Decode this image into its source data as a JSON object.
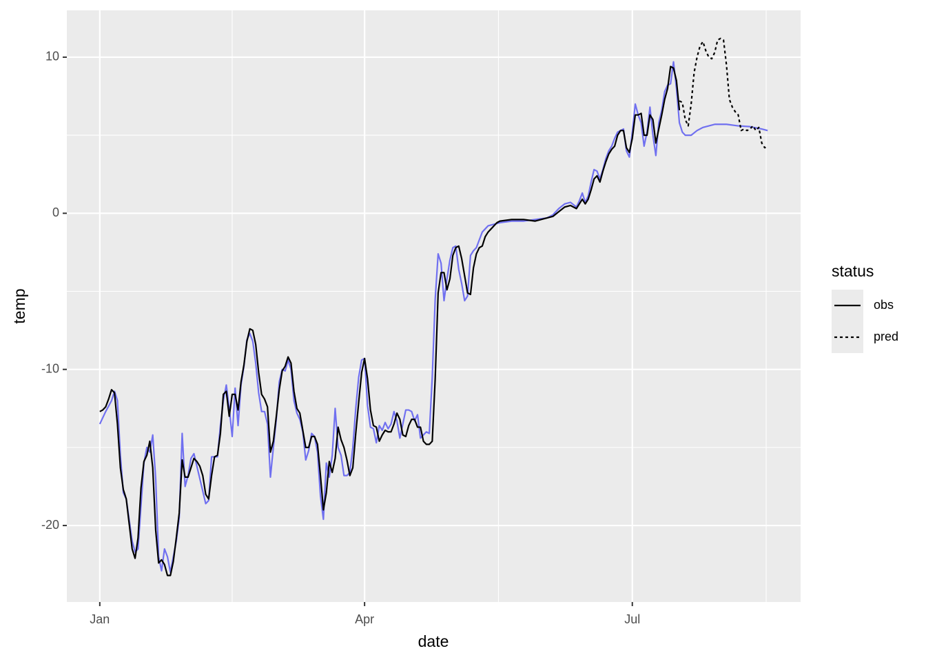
{
  "chart_data": {
    "type": "line",
    "x_label": "date",
    "y_label": "temp",
    "legend_title": "status",
    "xlim": [
      -11.2,
      238.2
    ],
    "ylim": [
      -24.9,
      13.0
    ],
    "xticks": [
      {
        "value": 0,
        "label": "Jan"
      },
      {
        "value": 90,
        "label": "Apr"
      },
      {
        "value": 181,
        "label": "Jul"
      }
    ],
    "yticks": [
      -20,
      -10,
      0,
      10
    ],
    "grid": true,
    "series": [
      {
        "color": "#7070f0",
        "dash": "solid",
        "x": [
          0,
          2,
          4,
          5,
          6,
          7,
          8,
          9,
          11,
          12,
          13,
          15,
          16,
          17,
          18,
          19,
          20,
          21,
          22,
          23,
          24,
          26,
          27,
          28,
          29,
          30,
          31,
          32,
          34,
          36,
          37,
          38,
          40,
          41,
          42,
          43,
          44,
          45,
          46,
          47,
          48,
          49,
          50,
          51,
          52,
          53,
          54,
          55,
          56,
          57,
          58,
          59,
          60,
          61,
          62,
          63,
          64,
          65,
          66,
          67,
          68,
          69,
          70,
          71,
          72,
          73,
          74,
          75,
          76,
          77,
          78,
          79,
          80,
          81,
          82,
          83,
          84,
          85,
          86,
          87,
          88,
          89,
          90,
          91,
          92,
          93,
          94,
          95,
          96,
          97,
          98,
          99,
          100,
          101,
          102,
          103,
          104,
          105,
          106,
          107,
          108,
          109,
          110,
          111,
          112,
          113,
          114,
          115,
          116,
          117,
          118,
          119,
          120,
          121,
          122,
          123,
          124,
          125,
          126,
          127,
          128,
          129,
          130,
          131,
          132,
          134,
          136,
          140,
          144,
          148,
          152,
          154,
          156,
          158,
          160,
          162,
          163,
          164,
          165,
          166,
          167,
          168,
          169,
          170,
          171,
          172,
          173,
          174,
          175,
          176,
          177,
          178,
          179,
          180,
          181,
          182,
          183,
          184,
          185,
          186,
          187,
          188,
          189,
          190,
          191,
          192,
          193,
          194,
          195,
          196,
          197,
          198,
          199,
          201,
          203,
          205,
          207,
          209,
          213,
          217,
          221,
          225,
          227
        ],
        "values": [
          -13.5,
          -12.7,
          -12.0,
          -11.4,
          -12.0,
          -15.5,
          -17.9,
          -18.3,
          -21.0,
          -21.7,
          -21.5,
          -16.0,
          -15.0,
          -15.3,
          -14.2,
          -17.0,
          -22.0,
          -22.9,
          -21.5,
          -22.0,
          -23.0,
          -21.0,
          -19.5,
          -14.1,
          -17.5,
          -16.8,
          -15.7,
          -15.4,
          -17.0,
          -18.6,
          -18.4,
          -15.6,
          -15.6,
          -13.6,
          -12.0,
          -11.0,
          -12.5,
          -14.3,
          -11.2,
          -13.6,
          -11.0,
          -9.8,
          -8.1,
          -7.7,
          -8.2,
          -9.6,
          -11.5,
          -12.7,
          -12.7,
          -13.5,
          -16.9,
          -15.0,
          -13.2,
          -10.8,
          -10.0,
          -10.1,
          -9.4,
          -10.0,
          -12.0,
          -12.8,
          -13.2,
          -14.0,
          -15.8,
          -15.2,
          -14.1,
          -14.3,
          -15.3,
          -18.1,
          -19.6,
          -16.0,
          -16.9,
          -15.5,
          -12.5,
          -15.0,
          -15.5,
          -16.8,
          -16.8,
          -16.6,
          -15.0,
          -12.5,
          -10.5,
          -9.4,
          -9.3,
          -12.3,
          -13.7,
          -13.8,
          -14.7,
          -13.6,
          -13.9,
          -13.4,
          -13.8,
          -13.5,
          -12.7,
          -13.3,
          -14.4,
          -13.5,
          -12.6,
          -12.6,
          -12.7,
          -13.3,
          -12.9,
          -14.4,
          -14.2,
          -14.0,
          -14.1,
          -10.5,
          -5.5,
          -2.6,
          -3.2,
          -5.6,
          -4.2,
          -3.0,
          -2.2,
          -2.1,
          -3.6,
          -4.5,
          -5.6,
          -5.3,
          -2.7,
          -2.4,
          -2.2,
          -1.7,
          -1.2,
          -1.0,
          -0.8,
          -0.7,
          -0.6,
          -0.5,
          -0.5,
          -0.4,
          -0.3,
          -0.1,
          0.3,
          0.6,
          0.7,
          0.4,
          0.8,
          1.3,
          0.7,
          1.1,
          2.0,
          2.8,
          2.7,
          2.2,
          2.8,
          3.5,
          4.0,
          4.3,
          4.8,
          5.2,
          5.3,
          5.4,
          4.0,
          3.6,
          5.2,
          7.0,
          6.3,
          5.8,
          4.3,
          5.2,
          6.8,
          5.0,
          3.7,
          5.8,
          6.6,
          7.8,
          8.2,
          8.3,
          9.7,
          8.0,
          5.8,
          5.2,
          5.0,
          5.0,
          5.3,
          5.5,
          5.6,
          5.7,
          5.7,
          5.6,
          5.55,
          5.4,
          5.3
        ]
      },
      {
        "name": "obs",
        "color": "#000000",
        "dash": "solid",
        "x": [
          0,
          1,
          2,
          3,
          4,
          5,
          6,
          7,
          8,
          9,
          10,
          11,
          12,
          13,
          14,
          15,
          16,
          17,
          18,
          19,
          20,
          21,
          22,
          23,
          24,
          25,
          26,
          27,
          28,
          29,
          30,
          31,
          32,
          33,
          34,
          35,
          36,
          37,
          38,
          39,
          40,
          41,
          42,
          43,
          44,
          45,
          46,
          47,
          48,
          49,
          50,
          51,
          52,
          53,
          54,
          55,
          56,
          57,
          58,
          59,
          60,
          61,
          62,
          63,
          64,
          65,
          66,
          67,
          68,
          69,
          70,
          71,
          72,
          73,
          74,
          75,
          76,
          77,
          78,
          79,
          80,
          81,
          82,
          83,
          84,
          85,
          86,
          87,
          88,
          89,
          90,
          91,
          92,
          93,
          94,
          95,
          96,
          97,
          98,
          99,
          100,
          101,
          102,
          103,
          104,
          105,
          106,
          107,
          108,
          109,
          110,
          111,
          112,
          113,
          114,
          115,
          116,
          117,
          118,
          119,
          120,
          121,
          122,
          123,
          124,
          125,
          126,
          127,
          128,
          129,
          130,
          131,
          132,
          133,
          134,
          135,
          136,
          140,
          144,
          148,
          150,
          152,
          154,
          156,
          158,
          160,
          162,
          163,
          164,
          165,
          166,
          167,
          168,
          169,
          170,
          171,
          172,
          173,
          174,
          175,
          176,
          177,
          178,
          179,
          180,
          181,
          182,
          183,
          184,
          185,
          186,
          187,
          188,
          189,
          190,
          191,
          192,
          193,
          194,
          195,
          196,
          197
        ],
        "values": [
          -12.7,
          -12.6,
          -12.4,
          -11.9,
          -11.3,
          -11.5,
          -13.5,
          -16.3,
          -17.7,
          -18.3,
          -19.9,
          -21.5,
          -22.1,
          -20.8,
          -17.6,
          -15.9,
          -15.5,
          -14.6,
          -16.3,
          -20.3,
          -22.4,
          -22.2,
          -22.5,
          -23.2,
          -23.2,
          -22.3,
          -20.8,
          -19.2,
          -15.8,
          -16.9,
          -16.9,
          -16.3,
          -15.7,
          -15.9,
          -16.2,
          -16.8,
          -18.0,
          -18.3,
          -16.8,
          -15.6,
          -15.5,
          -14.1,
          -11.6,
          -11.4,
          -13.0,
          -11.6,
          -11.6,
          -12.6,
          -10.8,
          -9.7,
          -8.2,
          -7.4,
          -7.5,
          -8.4,
          -10.2,
          -11.6,
          -11.9,
          -12.4,
          -15.3,
          -14.6,
          -13.0,
          -11.3,
          -10.1,
          -9.8,
          -9.2,
          -9.6,
          -11.4,
          -12.5,
          -12.8,
          -13.9,
          -15.0,
          -15.0,
          -14.3,
          -14.3,
          -14.8,
          -16.8,
          -19.0,
          -17.9,
          -15.9,
          -16.6,
          -15.7,
          -13.7,
          -14.5,
          -15.0,
          -15.8,
          -16.8,
          -16.3,
          -14.1,
          -12.1,
          -10.2,
          -9.3,
          -10.6,
          -12.6,
          -13.6,
          -13.7,
          -14.6,
          -14.2,
          -13.9,
          -14.0,
          -14.0,
          -13.5,
          -12.8,
          -13.2,
          -14.2,
          -14.3,
          -13.6,
          -13.2,
          -13.2,
          -13.7,
          -13.7,
          -14.6,
          -14.8,
          -14.8,
          -14.6,
          -10.6,
          -5.1,
          -3.8,
          -3.8,
          -4.9,
          -4.2,
          -2.7,
          -2.2,
          -2.1,
          -2.9,
          -4.0,
          -5.1,
          -5.2,
          -3.5,
          -2.6,
          -2.2,
          -2.1,
          -1.5,
          -1.2,
          -1.0,
          -0.8,
          -0.6,
          -0.5,
          -0.4,
          -0.4,
          -0.5,
          -0.4,
          -0.3,
          -0.2,
          0.1,
          0.4,
          0.5,
          0.3,
          0.6,
          0.9,
          0.6,
          0.9,
          1.5,
          2.2,
          2.4,
          2.0,
          2.7,
          3.3,
          3.8,
          4.1,
          4.3,
          5.0,
          5.3,
          5.3,
          4.2,
          3.9,
          4.8,
          6.3,
          6.3,
          6.4,
          5.0,
          5.0,
          6.3,
          6.0,
          4.5,
          5.4,
          6.3,
          7.3,
          8.0,
          9.4,
          9.3,
          8.5,
          6.6
        ]
      },
      {
        "name": "pred",
        "color": "#000000",
        "dash": "dashed",
        "x": [
          197,
          198,
          199,
          200,
          201,
          202,
          203,
          204,
          205,
          206,
          207,
          208,
          209,
          210,
          211,
          212,
          213,
          214,
          215,
          216,
          217,
          218,
          219,
          220,
          221,
          222,
          223,
          224,
          225,
          226,
          227
        ],
        "values": [
          7.2,
          7.1,
          6.0,
          5.6,
          7.0,
          9.0,
          10.0,
          10.7,
          11.0,
          10.4,
          10.0,
          9.9,
          10.3,
          11.1,
          11.2,
          11.1,
          9.5,
          7.3,
          6.8,
          6.5,
          6.3,
          5.3,
          5.4,
          5.3,
          5.4,
          5.6,
          5.3,
          5.5,
          4.5,
          4.2,
          4.3
        ]
      }
    ]
  }
}
